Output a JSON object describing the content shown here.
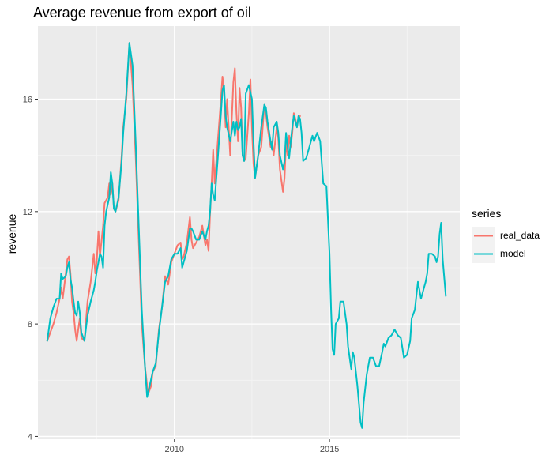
{
  "chart_data": {
    "type": "line",
    "title": "Average revenue from export of oil",
    "xlabel": "",
    "ylabel": "revenue",
    "xlim": [
      2005.6,
      2019.2
    ],
    "ylim": [
      3.9,
      18.6
    ],
    "x_ticks": [
      2010,
      2015
    ],
    "y_ticks": [
      4,
      8,
      12,
      16
    ],
    "grid": true,
    "legend": {
      "title": "series",
      "position": "right"
    },
    "series": [
      {
        "name": "real_data",
        "color": "#F8766D",
        "points": [
          [
            2005.9,
            7.4
          ],
          [
            2006.0,
            7.7
          ],
          [
            2006.1,
            8.0
          ],
          [
            2006.2,
            8.4
          ],
          [
            2006.3,
            8.9
          ],
          [
            2006.35,
            9.3
          ],
          [
            2006.4,
            8.9
          ],
          [
            2006.5,
            9.8
          ],
          [
            2006.55,
            10.3
          ],
          [
            2006.6,
            10.4
          ],
          [
            2006.65,
            9.8
          ],
          [
            2006.7,
            8.8
          ],
          [
            2006.75,
            8.4
          ],
          [
            2006.8,
            7.8
          ],
          [
            2006.85,
            7.4
          ],
          [
            2006.9,
            7.8
          ],
          [
            2006.95,
            8.2
          ],
          [
            2007.0,
            7.5
          ],
          [
            2007.1,
            7.4
          ],
          [
            2007.2,
            8.8
          ],
          [
            2007.3,
            9.5
          ],
          [
            2007.4,
            10.5
          ],
          [
            2007.45,
            9.8
          ],
          [
            2007.5,
            10.3
          ],
          [
            2007.55,
            11.3
          ],
          [
            2007.6,
            10.4
          ],
          [
            2007.7,
            11.5
          ],
          [
            2007.75,
            12.3
          ],
          [
            2007.85,
            12.5
          ],
          [
            2007.9,
            13.0
          ],
          [
            2007.95,
            12.6
          ],
          [
            2008.0,
            13.0
          ],
          [
            2008.05,
            12.1
          ],
          [
            2008.1,
            12.0
          ],
          [
            2008.2,
            12.4
          ],
          [
            2008.3,
            14.0
          ],
          [
            2008.35,
            15.0
          ],
          [
            2008.45,
            16.0
          ],
          [
            2008.55,
            18.0
          ],
          [
            2008.65,
            16.5
          ],
          [
            2008.75,
            14.0
          ],
          [
            2008.85,
            11.0
          ],
          [
            2008.95,
            8.0
          ],
          [
            2009.05,
            6.5
          ],
          [
            2009.15,
            5.5
          ],
          [
            2009.25,
            5.8
          ],
          [
            2009.3,
            6.3
          ],
          [
            2009.4,
            6.5
          ],
          [
            2009.5,
            7.8
          ],
          [
            2009.6,
            8.6
          ],
          [
            2009.7,
            9.7
          ],
          [
            2009.8,
            9.4
          ],
          [
            2009.9,
            10.2
          ],
          [
            2010.0,
            10.5
          ],
          [
            2010.1,
            10.8
          ],
          [
            2010.2,
            10.9
          ],
          [
            2010.25,
            10.3
          ],
          [
            2010.3,
            10.4
          ],
          [
            2010.4,
            10.9
          ],
          [
            2010.5,
            11.8
          ],
          [
            2010.55,
            11.0
          ],
          [
            2010.6,
            10.7
          ],
          [
            2010.7,
            10.9
          ],
          [
            2010.8,
            11.1
          ],
          [
            2010.9,
            11.5
          ],
          [
            2011.0,
            10.8
          ],
          [
            2011.05,
            11.0
          ],
          [
            2011.1,
            10.6
          ],
          [
            2011.15,
            11.9
          ],
          [
            2011.2,
            13.0
          ],
          [
            2011.25,
            14.2
          ],
          [
            2011.3,
            13.0
          ],
          [
            2011.4,
            14.5
          ],
          [
            2011.5,
            16.0
          ],
          [
            2011.55,
            16.8
          ],
          [
            2011.6,
            16.3
          ],
          [
            2011.65,
            15.0
          ],
          [
            2011.7,
            16.0
          ],
          [
            2011.8,
            14.0
          ],
          [
            2011.9,
            16.6
          ],
          [
            2011.95,
            17.1
          ],
          [
            2012.0,
            15.5
          ],
          [
            2012.05,
            14.5
          ],
          [
            2012.1,
            16.4
          ],
          [
            2012.15,
            15.7
          ],
          [
            2012.2,
            14.0
          ],
          [
            2012.25,
            13.8
          ],
          [
            2012.3,
            13.9
          ],
          [
            2012.4,
            15.5
          ],
          [
            2012.45,
            16.7
          ],
          [
            2012.5,
            15.0
          ],
          [
            2012.55,
            13.7
          ],
          [
            2012.6,
            13.2
          ],
          [
            2012.7,
            14.0
          ],
          [
            2012.8,
            14.3
          ],
          [
            2012.9,
            15.8
          ],
          [
            2012.95,
            15.5
          ],
          [
            2013.0,
            15.0
          ],
          [
            2013.1,
            14.3
          ],
          [
            2013.15,
            14.5
          ],
          [
            2013.2,
            14.0
          ],
          [
            2013.3,
            15.0
          ],
          [
            2013.35,
            14.6
          ],
          [
            2013.4,
            13.5
          ],
          [
            2013.5,
            12.7
          ],
          [
            2013.55,
            13.2
          ],
          [
            2013.6,
            14.5
          ],
          [
            2013.65,
            14.0
          ],
          [
            2013.7,
            14.7
          ],
          [
            2013.75,
            14.3
          ],
          [
            2013.8,
            14.8
          ],
          [
            2013.85,
            15.5
          ],
          [
            2013.9,
            15.3
          ],
          [
            2013.95,
            15.0
          ],
          [
            2014.0,
            15.3
          ],
          [
            2014.05,
            15.4
          ]
        ]
      },
      {
        "name": "model",
        "color": "#00BFC4",
        "points": [
          [
            2005.9,
            7.4
          ],
          [
            2006.0,
            8.2
          ],
          [
            2006.1,
            8.6
          ],
          [
            2006.2,
            8.9
          ],
          [
            2006.3,
            8.9
          ],
          [
            2006.35,
            9.8
          ],
          [
            2006.4,
            9.6
          ],
          [
            2006.5,
            9.7
          ],
          [
            2006.55,
            10.0
          ],
          [
            2006.6,
            10.2
          ],
          [
            2006.65,
            9.6
          ],
          [
            2006.7,
            9.3
          ],
          [
            2006.75,
            8.8
          ],
          [
            2006.8,
            8.4
          ],
          [
            2006.85,
            8.3
          ],
          [
            2006.9,
            8.8
          ],
          [
            2006.95,
            8.4
          ],
          [
            2007.0,
            7.7
          ],
          [
            2007.1,
            7.4
          ],
          [
            2007.2,
            8.3
          ],
          [
            2007.3,
            8.8
          ],
          [
            2007.4,
            9.2
          ],
          [
            2007.45,
            9.5
          ],
          [
            2007.5,
            9.9
          ],
          [
            2007.55,
            10.2
          ],
          [
            2007.6,
            10.5
          ],
          [
            2007.65,
            10.4
          ],
          [
            2007.7,
            10.0
          ],
          [
            2007.75,
            11.5
          ],
          [
            2007.8,
            12.0
          ],
          [
            2007.9,
            12.5
          ],
          [
            2007.95,
            13.4
          ],
          [
            2008.0,
            13.0
          ],
          [
            2008.05,
            12.1
          ],
          [
            2008.1,
            12.0
          ],
          [
            2008.2,
            12.5
          ],
          [
            2008.3,
            13.8
          ],
          [
            2008.35,
            14.8
          ],
          [
            2008.45,
            16.2
          ],
          [
            2008.55,
            18.0
          ],
          [
            2008.65,
            17.2
          ],
          [
            2008.75,
            14.5
          ],
          [
            2008.85,
            11.5
          ],
          [
            2008.95,
            8.5
          ],
          [
            2009.05,
            6.5
          ],
          [
            2009.12,
            5.4
          ],
          [
            2009.2,
            5.8
          ],
          [
            2009.3,
            6.3
          ],
          [
            2009.4,
            6.6
          ],
          [
            2009.5,
            7.7
          ],
          [
            2009.6,
            8.6
          ],
          [
            2009.7,
            9.5
          ],
          [
            2009.8,
            9.7
          ],
          [
            2009.9,
            10.3
          ],
          [
            2010.0,
            10.5
          ],
          [
            2010.1,
            10.5
          ],
          [
            2010.2,
            10.7
          ],
          [
            2010.25,
            10.0
          ],
          [
            2010.3,
            10.2
          ],
          [
            2010.4,
            10.6
          ],
          [
            2010.5,
            11.4
          ],
          [
            2010.55,
            11.4
          ],
          [
            2010.6,
            11.3
          ],
          [
            2010.7,
            11.0
          ],
          [
            2010.8,
            11.0
          ],
          [
            2010.9,
            11.3
          ],
          [
            2011.0,
            11.0
          ],
          [
            2011.05,
            11.3
          ],
          [
            2011.1,
            11.5
          ],
          [
            2011.15,
            12.0
          ],
          [
            2011.2,
            13.0
          ],
          [
            2011.25,
            12.6
          ],
          [
            2011.3,
            12.4
          ],
          [
            2011.4,
            13.9
          ],
          [
            2011.5,
            15.5
          ],
          [
            2011.55,
            16.3
          ],
          [
            2011.6,
            16.5
          ],
          [
            2011.65,
            15.4
          ],
          [
            2011.7,
            15.0
          ],
          [
            2011.8,
            14.5
          ],
          [
            2011.9,
            15.2
          ],
          [
            2011.95,
            14.7
          ],
          [
            2012.0,
            15.2
          ],
          [
            2012.05,
            14.9
          ],
          [
            2012.1,
            15.0
          ],
          [
            2012.15,
            15.3
          ],
          [
            2012.2,
            14.0
          ],
          [
            2012.25,
            13.8
          ],
          [
            2012.3,
            16.2
          ],
          [
            2012.4,
            16.5
          ],
          [
            2012.5,
            16.0
          ],
          [
            2012.55,
            14.5
          ],
          [
            2012.6,
            13.2
          ],
          [
            2012.7,
            14.0
          ],
          [
            2012.8,
            15.0
          ],
          [
            2012.9,
            15.8
          ],
          [
            2012.95,
            15.7
          ],
          [
            2013.0,
            15.2
          ],
          [
            2013.1,
            14.5
          ],
          [
            2013.15,
            14.2
          ],
          [
            2013.2,
            15.0
          ],
          [
            2013.3,
            15.2
          ],
          [
            2013.35,
            14.8
          ],
          [
            2013.4,
            14.0
          ],
          [
            2013.5,
            13.5
          ],
          [
            2013.55,
            13.8
          ],
          [
            2013.6,
            14.8
          ],
          [
            2013.65,
            14.3
          ],
          [
            2013.7,
            13.9
          ],
          [
            2013.75,
            14.5
          ],
          [
            2013.8,
            15.0
          ],
          [
            2013.85,
            15.4
          ],
          [
            2013.9,
            15.2
          ],
          [
            2013.95,
            15.0
          ],
          [
            2014.0,
            15.4
          ],
          [
            2014.05,
            15.3
          ],
          [
            2014.1,
            14.8
          ],
          [
            2014.15,
            13.8
          ],
          [
            2014.25,
            13.9
          ],
          [
            2014.35,
            14.3
          ],
          [
            2014.45,
            14.7
          ],
          [
            2014.5,
            14.5
          ],
          [
            2014.6,
            14.8
          ],
          [
            2014.7,
            14.5
          ],
          [
            2014.8,
            13.0
          ],
          [
            2014.9,
            12.9
          ],
          [
            2015.0,
            10.5
          ],
          [
            2015.05,
            8.5
          ],
          [
            2015.1,
            7.1
          ],
          [
            2015.15,
            6.9
          ],
          [
            2015.2,
            8.0
          ],
          [
            2015.3,
            8.2
          ],
          [
            2015.35,
            8.8
          ],
          [
            2015.45,
            8.8
          ],
          [
            2015.55,
            8.0
          ],
          [
            2015.6,
            7.2
          ],
          [
            2015.7,
            6.4
          ],
          [
            2015.75,
            7.0
          ],
          [
            2015.8,
            6.8
          ],
          [
            2015.9,
            5.8
          ],
          [
            2016.0,
            4.5
          ],
          [
            2016.05,
            4.3
          ],
          [
            2016.1,
            5.2
          ],
          [
            2016.2,
            6.2
          ],
          [
            2016.3,
            6.8
          ],
          [
            2016.4,
            6.8
          ],
          [
            2016.5,
            6.5
          ],
          [
            2016.6,
            6.5
          ],
          [
            2016.7,
            7.0
          ],
          [
            2016.75,
            7.3
          ],
          [
            2016.8,
            7.2
          ],
          [
            2016.9,
            7.5
          ],
          [
            2017.0,
            7.6
          ],
          [
            2017.1,
            7.8
          ],
          [
            2017.2,
            7.6
          ],
          [
            2017.3,
            7.5
          ],
          [
            2017.4,
            6.8
          ],
          [
            2017.5,
            6.9
          ],
          [
            2017.6,
            7.4
          ],
          [
            2017.65,
            8.2
          ],
          [
            2017.75,
            8.5
          ],
          [
            2017.85,
            9.5
          ],
          [
            2017.9,
            9.2
          ],
          [
            2017.95,
            8.9
          ],
          [
            2018.0,
            9.1
          ],
          [
            2018.05,
            9.3
          ],
          [
            2018.1,
            9.5
          ],
          [
            2018.15,
            9.8
          ],
          [
            2018.2,
            10.5
          ],
          [
            2018.3,
            10.5
          ],
          [
            2018.4,
            10.4
          ],
          [
            2018.45,
            10.2
          ],
          [
            2018.5,
            10.4
          ],
          [
            2018.55,
            11.2
          ],
          [
            2018.6,
            11.6
          ],
          [
            2018.65,
            10.3
          ],
          [
            2018.75,
            9.0
          ]
        ]
      }
    ]
  }
}
